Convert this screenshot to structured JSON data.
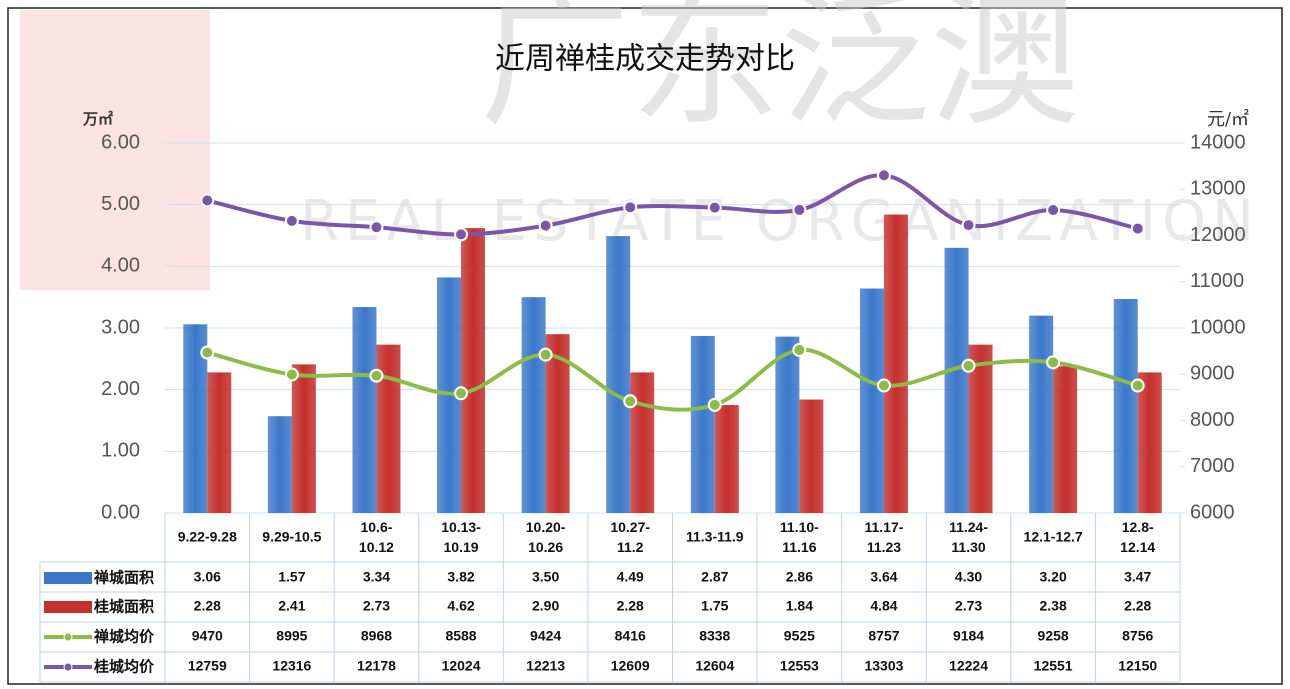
{
  "chart_data": {
    "type": "bar_line_table",
    "title": "近周禅桂成交走势对比",
    "watermark": [
      "广东泛澳",
      "REAL ESTATE ORGANIZATION"
    ],
    "y_label": "万㎡",
    "y2_label": "元/㎡",
    "categories": [
      "9.22-9.28",
      "9.29-10.5",
      "10.6-10.12",
      "10.13-10.19",
      "10.20-10.26",
      "10.27-11.2",
      "11.3-11.9",
      "11.10-11.16",
      "11.17-11.23",
      "11.24-11.30",
      "12.1-12.7",
      "12.8-12.14"
    ],
    "series": [
      {
        "name": "禅城面积",
        "type": "bar",
        "color": "#3b78c9",
        "values": [
          3.06,
          1.57,
          3.34,
          3.82,
          3.5,
          4.49,
          2.87,
          2.86,
          3.64,
          4.3,
          3.2,
          3.47
        ],
        "value_labels": [
          "3.06",
          "1.57",
          "3.34",
          "3.82",
          "3.50",
          "4.49",
          "2.87",
          "2.86",
          "3.64",
          "4.30",
          "3.20",
          "3.47"
        ]
      },
      {
        "name": "桂城面积",
        "type": "bar",
        "color": "#c4302d",
        "values": [
          2.28,
          2.41,
          2.73,
          4.62,
          2.9,
          2.28,
          1.75,
          1.84,
          4.84,
          2.73,
          2.38,
          2.28
        ],
        "value_labels": [
          "2.28",
          "2.41",
          "2.73",
          "4.62",
          "2.90",
          "2.28",
          "1.75",
          "1.84",
          "4.84",
          "2.73",
          "2.38",
          "2.28"
        ]
      },
      {
        "name": "禅城均价",
        "type": "line",
        "axis": "y2",
        "color": "#8cbb48",
        "values": [
          9470,
          8995,
          8968,
          8588,
          9424,
          8416,
          8338,
          9525,
          8757,
          9184,
          9258,
          8756
        ]
      },
      {
        "name": "桂城均价",
        "type": "line",
        "axis": "y2",
        "color": "#7a56a8",
        "values": [
          12759,
          12316,
          12178,
          12024,
          12213,
          12609,
          12604,
          12553,
          13303,
          12224,
          12551,
          12150
        ]
      }
    ],
    "ylim": [
      0,
      6
    ],
    "yticks": [
      {
        "value": 0,
        "label": "0.00"
      },
      {
        "value": 1,
        "label": "1.00"
      },
      {
        "value": 2,
        "label": "2.00"
      },
      {
        "value": 3,
        "label": "3.00"
      },
      {
        "value": 4,
        "label": "4.00"
      },
      {
        "value": 5,
        "label": "5.00"
      },
      {
        "value": 6,
        "label": "6.00"
      }
    ],
    "y2lim": [
      6000,
      14000
    ],
    "y2ticks": [
      6000,
      7000,
      8000,
      9000,
      10000,
      11000,
      12000,
      13000,
      14000
    ],
    "grid": true
  }
}
